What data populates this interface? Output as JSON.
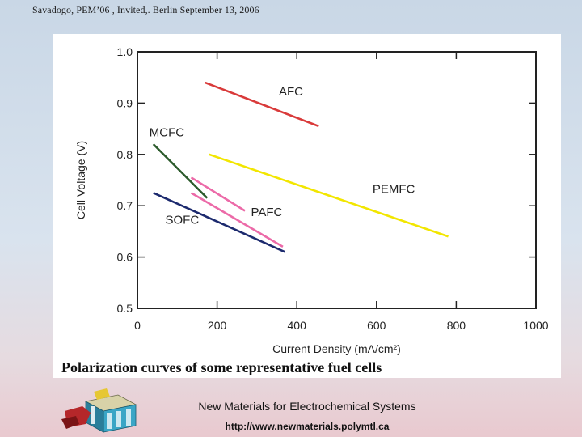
{
  "header": {
    "text": "Savadogo, PEM’06 , Invited,. Berlin September 13,  2006"
  },
  "footer": {
    "title": "New Materials for Electrochemical Systems",
    "url": "http://www.newmaterials.polymtl.ca"
  },
  "colors": {
    "AFC": "#d93a3a",
    "PEMFC": "#f2e600",
    "MCFC": "#2b5a2b",
    "PAFC": "#ec6aa8",
    "SOFC": "#1c2a6e"
  },
  "chart_data": {
    "type": "line",
    "title": "Polarization curves of some representative fuel cells",
    "xlabel": "Current Density (mA/cm²)",
    "ylabel": "Cell Voltage (V)",
    "xlim": [
      0,
      1000
    ],
    "ylim": [
      0.5,
      1.0
    ],
    "x_ticks": [
      "0",
      "200",
      "400",
      "600",
      "800",
      "1000"
    ],
    "y_ticks": [
      "0.5",
      "0.6",
      "0.7",
      "0.8",
      "0.9",
      "1.0"
    ],
    "grid": false,
    "series": [
      {
        "name": "AFC",
        "x": [
          170,
          455
        ],
        "y": [
          0.94,
          0.855
        ]
      },
      {
        "name": "PEMFC",
        "x": [
          180,
          780
        ],
        "y": [
          0.8,
          0.64
        ]
      },
      {
        "name": "MCFC",
        "x": [
          40,
          175
        ],
        "y": [
          0.82,
          0.715
        ]
      },
      {
        "name": "PAFC",
        "x": [
          135,
          270
        ],
        "y": [
          0.755,
          0.69
        ]
      },
      {
        "name": "PAFC",
        "x": [
          135,
          365
        ],
        "y": [
          0.725,
          0.62
        ]
      },
      {
        "name": "SOFC",
        "x": [
          40,
          370
        ],
        "y": [
          0.725,
          0.61
        ]
      }
    ],
    "annotations": [
      {
        "text": "AFC",
        "x": 355,
        "y": 0.915
      },
      {
        "text": "MCFC",
        "x": 30,
        "y": 0.835
      },
      {
        "text": "PEMFC",
        "x": 590,
        "y": 0.725
      },
      {
        "text": "PAFC",
        "x": 285,
        "y": 0.68
      },
      {
        "text": "SOFC",
        "x": 70,
        "y": 0.665
      }
    ]
  }
}
